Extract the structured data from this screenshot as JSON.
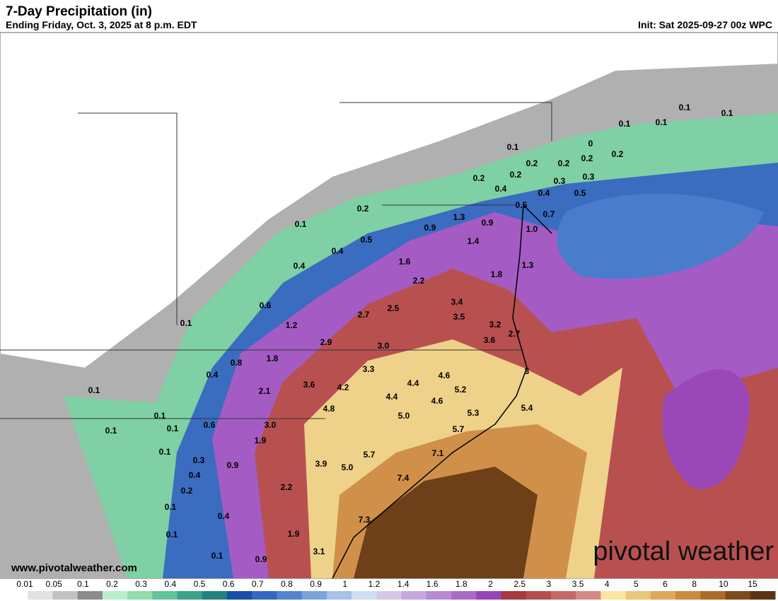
{
  "header": {
    "title": "7-Day Precipitation (in)",
    "subtitle": "Ending Friday, Oct. 3, 2025 at 8 p.m. EDT",
    "init": "Init: Sat 2025-09-27 00z WPC"
  },
  "labels": [
    "0.1",
    "0.1",
    "0.1",
    "0.1",
    "0.1",
    "0",
    "0.2",
    "0.2",
    "0.2",
    "0.2",
    "0.2",
    "0.2",
    "0.4",
    "0.3",
    "0.3",
    "0.4",
    "0.5",
    "0.2",
    "0.1",
    "0.5",
    "0.7",
    "1.3",
    "0.9",
    "0.9",
    "1.0",
    "0.5",
    "0.4",
    "1.4",
    "0.4",
    "1.6",
    "1.3",
    "1.8",
    "2.2",
    "0.6",
    "3.4",
    "2.5",
    "3.5",
    "2.7",
    "1.2",
    "0.1",
    "3.2",
    "2.7",
    "3.6",
    "2.9",
    "3.0",
    "1.8",
    "0.8",
    "0.4",
    "3.3",
    "3",
    "4.6",
    "4.4",
    "3.6",
    "4.2",
    "2.1",
    "5.2",
    "4.4",
    "0.1",
    "4.6",
    "5.4",
    "4.8",
    "5.3",
    "5.0",
    "0.1",
    "0.1",
    "0.1",
    "0.6",
    "3.0",
    "5.7",
    "1.9",
    "0.1",
    "0.3",
    "0.9",
    "5.7",
    "7.1",
    "3.9",
    "5.0",
    "0.4",
    "7.4",
    "0.2",
    "2.2",
    "0.1",
    "0.4",
    "7.3",
    "0.1",
    "1.9",
    "3.1",
    "0.1",
    "0.9"
  ],
  "legend": {
    "ticks": [
      "0.01",
      "0.05",
      "0.1",
      "0.2",
      "0.3",
      "0.4",
      "0.5",
      "0.6",
      "0.7",
      "0.8",
      "0.9",
      "1",
      "1.2",
      "1.4",
      "1.6",
      "1.8",
      "2",
      "2.5",
      "3",
      "3.5",
      "4",
      "5",
      "6",
      "8",
      "10",
      "15"
    ],
    "colors": [
      "#ffffff",
      "#e2e2e2",
      "#c2c2c2",
      "#8c8c8c",
      "#b8efc8",
      "#92dcae",
      "#62c49a",
      "#3aa388",
      "#24827c",
      "#1a4fa8",
      "#3468c2",
      "#5483cf",
      "#7ba3dc",
      "#a4c3e7",
      "#cddff0",
      "#d8c6e9",
      "#c7a7de",
      "#b88ad2",
      "#a86cc6",
      "#9646b8",
      "#a63a3c",
      "#b64e4e",
      "#c56868",
      "#d68a86",
      "#f8e6a2",
      "#e9c77a",
      "#dcaa5a",
      "#cc8a3c",
      "#ad6a28",
      "#7e4a1c",
      "#5c3414"
    ]
  },
  "watermark": {
    "url": "www.pivotalweather.com",
    "brand": "pivotal weather"
  }
}
